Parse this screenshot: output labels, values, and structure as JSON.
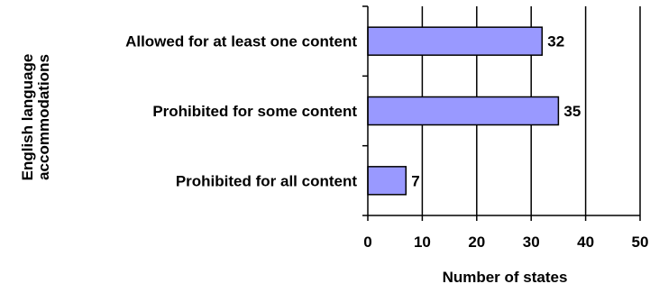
{
  "chart_data": {
    "type": "bar",
    "orientation": "horizontal",
    "categories": [
      "Allowed for at least one content",
      "Prohibited for some content",
      "Prohibited for all content"
    ],
    "values": [
      32,
      35,
      7
    ],
    "data_labels": [
      "32",
      "35",
      "7"
    ],
    "xlabel": "Number of states",
    "ylabel_lines": [
      "English language",
      "accommodations"
    ],
    "xlim": [
      0,
      50
    ],
    "xticks": [
      0,
      10,
      20,
      30,
      40,
      50
    ],
    "xtick_labels": [
      "0",
      "10",
      "20",
      "30",
      "40",
      "50"
    ],
    "grid": true,
    "legend": "none",
    "bar_color": "#9999ff",
    "bar_border": "#000000"
  }
}
